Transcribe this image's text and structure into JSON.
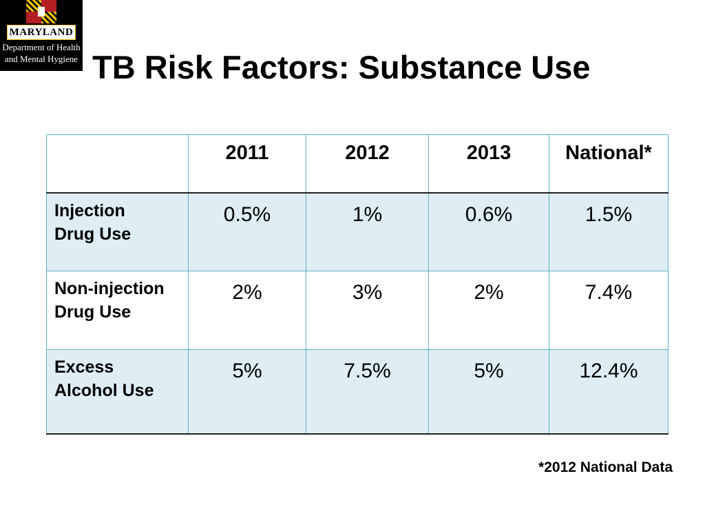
{
  "logo": {
    "wordmark": "MARYLAND",
    "line1": "Department of Health",
    "line2": "and Mental Hygiene",
    "colors": {
      "background": "#000000",
      "gold": "#f2c200",
      "red": "#b41f24"
    }
  },
  "title": "TB Risk Factors: Substance Use",
  "table": {
    "headers": [
      "",
      "2011",
      "2012",
      "2013",
      "National*"
    ],
    "rows": [
      {
        "label_line1": "Injection",
        "label_line2": "Drug Use",
        "values": [
          "0.5%",
          "1%",
          "0.6%",
          "1.5%"
        ]
      },
      {
        "label_line1": "Non-injection",
        "label_line2": "Drug Use",
        "values": [
          "2%",
          "3%",
          "2%",
          "7.4%"
        ]
      },
      {
        "label_line1": "Excess",
        "label_line2": "Alcohol Use",
        "values": [
          "5%",
          "7.5%",
          "5%",
          "12.4%"
        ]
      }
    ],
    "colors": {
      "border": "#5fb2c8",
      "shaded_row": "#deeef4",
      "rule": "#222222"
    }
  },
  "footnote": "*2012 National Data"
}
